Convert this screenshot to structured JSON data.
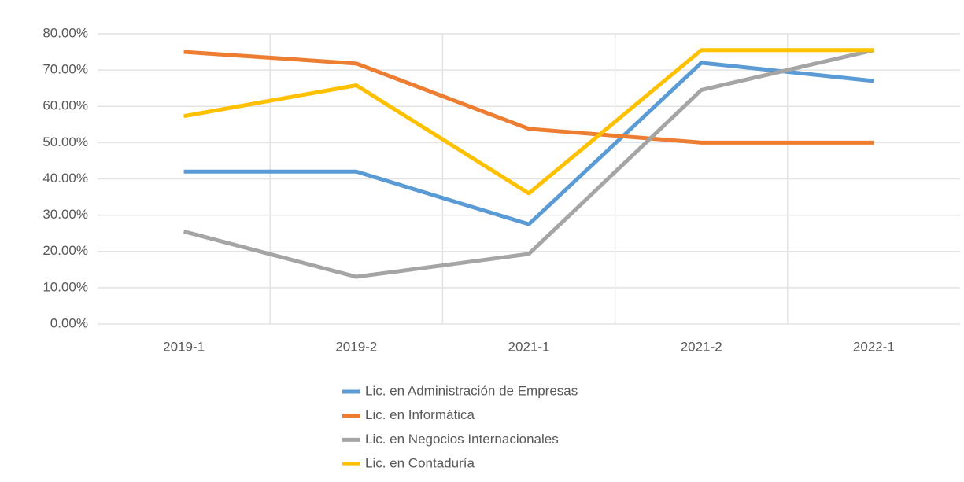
{
  "chart_data": {
    "type": "line",
    "categories": [
      "2019-1",
      "2019-2",
      "2021-1",
      "2021-2",
      "2022-1"
    ],
    "series": [
      {
        "name": "Lic. en Administración de Empresas",
        "color": "#5b9bd5",
        "values": [
          42,
          42,
          27.5,
          72,
          67
        ]
      },
      {
        "name": "Lic. en Informática",
        "color": "#ed7d31",
        "values": [
          75,
          71.8,
          53.8,
          50,
          50
        ]
      },
      {
        "name": "Lic. en Negocios Internacionales",
        "color": "#a5a5a5",
        "values": [
          25.5,
          13,
          19.3,
          64.5,
          75.5
        ]
      },
      {
        "name": "Lic. en Contaduría",
        "color": "#ffc000",
        "values": [
          57.3,
          65.8,
          36,
          75.5,
          75.5
        ]
      }
    ],
    "ylim": [
      0,
      80
    ],
    "yticks": [
      {
        "value": 0,
        "label": "0.00%"
      },
      {
        "value": 10,
        "label": "10.00%"
      },
      {
        "value": 20,
        "label": "20.00%"
      },
      {
        "value": 30,
        "label": "30.00%"
      },
      {
        "value": 40,
        "label": "40.00%"
      },
      {
        "value": 50,
        "label": "50.00%"
      },
      {
        "value": 60,
        "label": "60.00%"
      },
      {
        "value": 70,
        "label": "70.00%"
      },
      {
        "value": 80,
        "label": "80.00%"
      }
    ],
    "grid": true
  }
}
